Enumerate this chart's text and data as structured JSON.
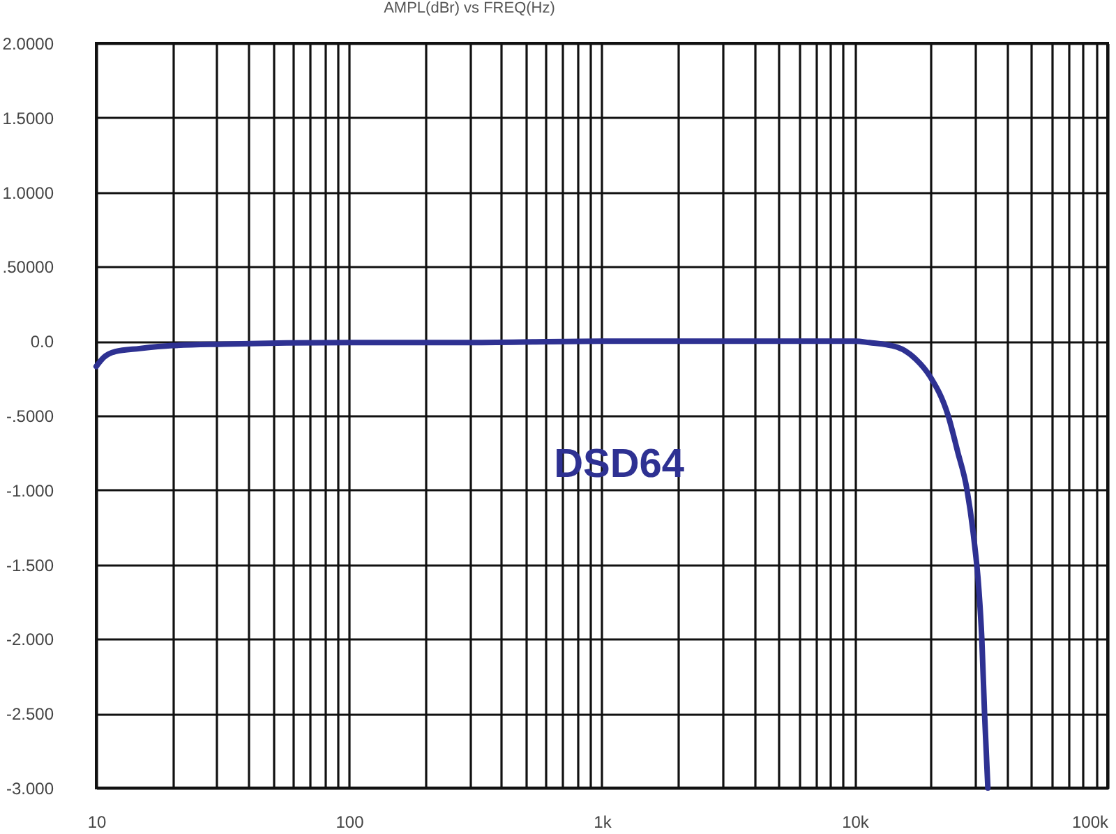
{
  "chart_data": {
    "type": "line",
    "title": "AMPL(dBr) vs FREQ(Hz)",
    "series": [
      {
        "name": "DSD64",
        "color": "#2e3192",
        "x": [
          10,
          10.7,
          11.9,
          14.8,
          20,
          32,
          100,
          300,
          1000,
          3000,
          10000,
          11400,
          14700,
          17400,
          19900,
          23400,
          25500,
          27800,
          29600,
          30900,
          31800,
          32600,
          33600
        ],
        "values": [
          -0.17,
          -0.11,
          -0.07,
          -0.05,
          -0.03,
          -0.02,
          -0.01,
          -0.01,
          0,
          0,
          0,
          -0.01,
          -0.04,
          -0.12,
          -0.24,
          -0.5,
          -0.74,
          -1.0,
          -1.33,
          -1.65,
          -2.0,
          -2.5,
          -3.0
        ]
      }
    ],
    "log": "x",
    "xlim": [
      10,
      100000
    ],
    "ylim": [
      -3,
      2
    ],
    "xticks": [
      10,
      {
        "value": 20,
        "label": null
      },
      {
        "value": 30,
        "label": null
      },
      {
        "value": 40,
        "label": null
      },
      {
        "value": 50,
        "label": null
      },
      {
        "value": 60,
        "label": null
      },
      {
        "value": 70,
        "label": null
      },
      {
        "value": 80,
        "label": null
      },
      {
        "value": 90,
        "label": null
      },
      100,
      {
        "value": 200,
        "label": null
      },
      {
        "value": 300,
        "label": null
      },
      {
        "value": 400,
        "label": null
      },
      {
        "value": 500,
        "label": null
      },
      {
        "value": 600,
        "label": null
      },
      {
        "value": 700,
        "label": null
      },
      {
        "value": 800,
        "label": null
      },
      {
        "value": 900,
        "label": null
      },
      {
        "value": 1000,
        "label": "1k"
      },
      {
        "value": 2000,
        "label": null
      },
      {
        "value": 3000,
        "label": null
      },
      {
        "value": 4000,
        "label": null
      },
      {
        "value": 5000,
        "label": null
      },
      {
        "value": 6000,
        "label": null
      },
      {
        "value": 7000,
        "label": null
      },
      {
        "value": 8000,
        "label": null
      },
      {
        "value": 9000,
        "label": null
      },
      {
        "value": 10000,
        "label": "10k"
      },
      {
        "value": 20000,
        "label": null
      },
      {
        "value": 30000,
        "label": null
      },
      {
        "value": 40000,
        "label": null
      },
      {
        "value": 50000,
        "label": null
      },
      {
        "value": 60000,
        "label": null
      },
      {
        "value": 70000,
        "label": null
      },
      {
        "value": 80000,
        "label": null
      },
      {
        "value": 90000,
        "label": null
      },
      {
        "value": 100000,
        "label": "100k"
      }
    ],
    "yticks": [
      {
        "value": 2,
        "label": "2.0000"
      },
      {
        "value": 1.5,
        "label": "1.5000"
      },
      {
        "value": 1,
        "label": "1.0000"
      },
      {
        "value": 0.5,
        "label": ".50000"
      },
      {
        "value": 0,
        "label": "0.0"
      },
      {
        "value": -0.5,
        "label": "-.5000"
      },
      {
        "value": -1,
        "label": "-1.000"
      },
      {
        "value": -1.5,
        "label": "-1.500"
      },
      {
        "value": -2,
        "label": "-2.000"
      },
      {
        "value": -2.5,
        "label": "-2.500"
      },
      {
        "value": -3,
        "label": "-3.000"
      }
    ],
    "grid": true,
    "legend": false,
    "line_style": "solid"
  }
}
